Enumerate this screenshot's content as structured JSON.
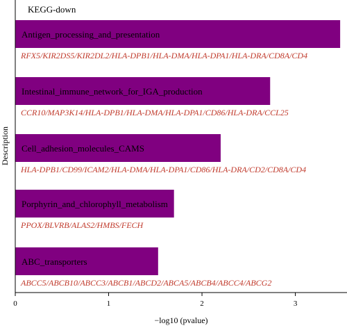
{
  "chart_data": {
    "type": "bar",
    "orientation": "horizontal",
    "title": "KEGG-down",
    "xlabel": "−log10 (pvalue)",
    "ylabel": "Description",
    "xlim": [
      0,
      3.5
    ],
    "xticks": [
      0,
      1,
      2,
      3
    ],
    "grid": false,
    "categories": [
      "Antigen_processing_and_presentation",
      "Intestinal_immune_network_for_IGA_production",
      "Cell_adhesion_molecules_CAMS",
      "Porphyrin_and_chlorophyll_metabolism",
      "ABC_transporters"
    ],
    "values": [
      3.48,
      2.73,
      2.2,
      1.7,
      1.53
    ],
    "genes": [
      "RFX5/KIR2DS5/KIR2DL2/HLA-DPB1/HLA-DMA/HLA-DPA1/HLA-DRA/CD8A/CD4",
      "CCR10/MAP3K14/HLA-DPB1/HLA-DMA/HLA-DPA1/CD86/HLA-DRA/CCL25",
      "HLA-DPB1/CD99/ICAM2/HLA-DMA/HLA-DPA1/CD86/HLA-DRA/CD2/CD8A/CD4",
      "PPOX/BLVRB/ALAS2/HMBS/FECH",
      "ABCC5/ABCB10/ABCC3/ABCB1/ABCD2/ABCA5/ABCB4/ABCC4/ABCG2"
    ],
    "colors": {
      "bar": "#800080",
      "genes": "#c0392b",
      "axis": "#000000"
    }
  }
}
